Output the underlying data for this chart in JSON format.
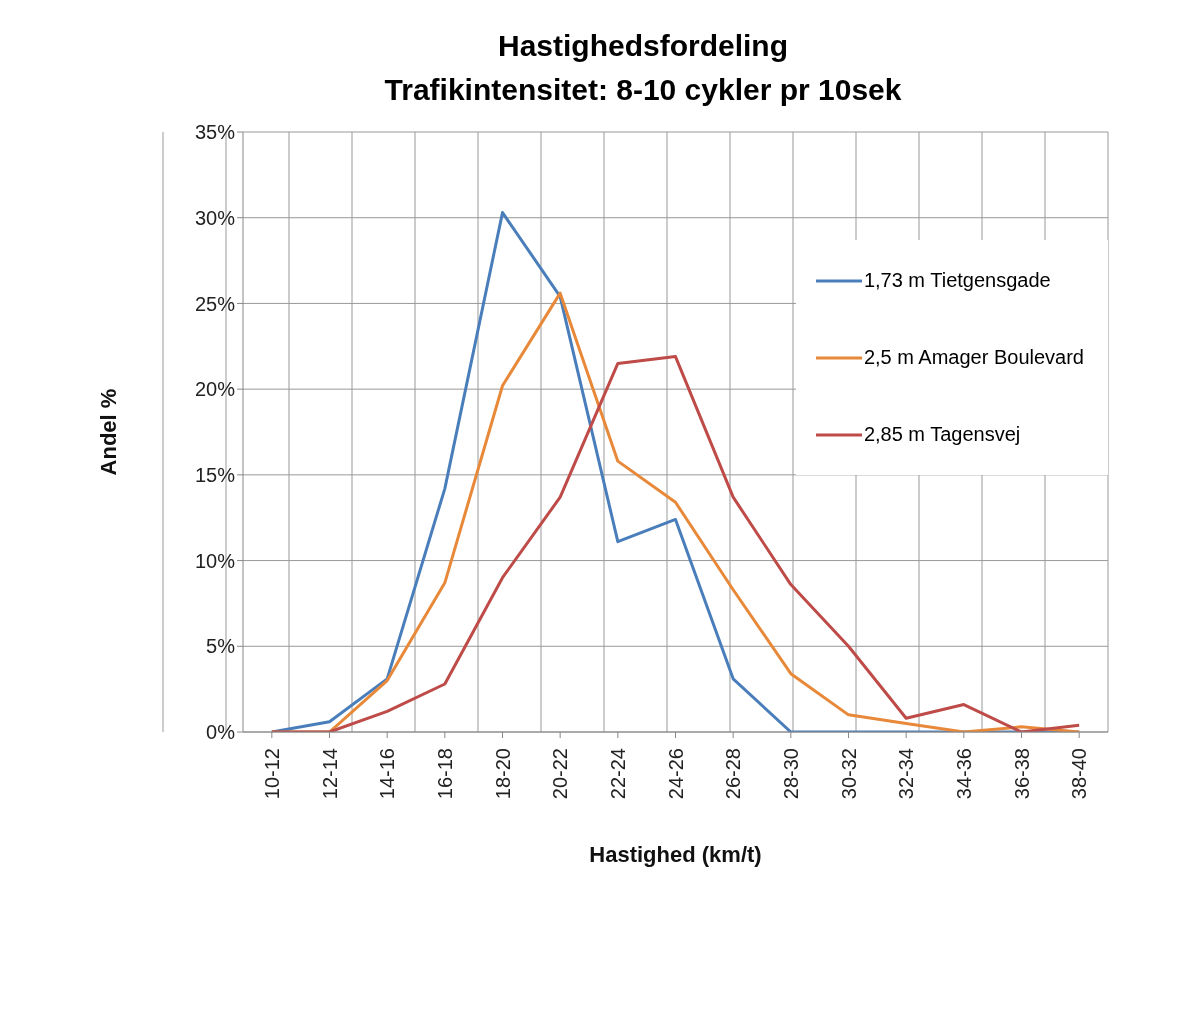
{
  "chart_data": {
    "type": "line",
    "title": "Hastighedsfordeling",
    "subtitle": "Trafikintensitet: 8-10 cykler pr 10sek",
    "xlabel": "Hastighed (km/t)",
    "ylabel": "Andel %",
    "categories": [
      "10-12",
      "12-14",
      "14-16",
      "16-18",
      "18-20",
      "20-22",
      "22-24",
      "24-26",
      "26-28",
      "28-30",
      "30-32",
      "32-34",
      "34-36",
      "36-38",
      "38-40"
    ],
    "series": [
      {
        "name": "1,73 m Tietgensgade",
        "color": "#4a7ebb",
        "values": [
          0,
          0.6,
          3.1,
          14.2,
          30.3,
          25.4,
          11.1,
          12.4,
          3.1,
          0,
          0,
          0,
          0,
          0,
          0
        ]
      },
      {
        "name": "2,5 m Amager Boulevard",
        "color": "#e8893a",
        "values": [
          0,
          0,
          3.0,
          8.7,
          20.2,
          25.6,
          15.8,
          13.4,
          8.3,
          3.4,
          1.0,
          0.5,
          0,
          0.3,
          0
        ]
      },
      {
        "name": "2,85 m Tagensvej",
        "color": "#be4b48",
        "values": [
          0,
          0,
          1.2,
          2.8,
          9.0,
          13.7,
          21.5,
          21.9,
          13.7,
          8.6,
          5.0,
          0.8,
          1.6,
          0,
          0.4
        ]
      }
    ],
    "ylim": [
      0,
      35
    ],
    "yticks": [
      {
        "value": 0,
        "label": "0%"
      },
      {
        "value": 5,
        "label": "5%"
      },
      {
        "value": 10,
        "label": "10%"
      },
      {
        "value": 15,
        "label": "15%"
      },
      {
        "value": 20,
        "label": "20%"
      },
      {
        "value": 25,
        "label": "25%"
      },
      {
        "value": 30,
        "label": "30%"
      },
      {
        "value": 35,
        "label": "35%"
      }
    ],
    "grid": true,
    "legend": "right",
    "marker": "none",
    "line_style": "solid"
  }
}
